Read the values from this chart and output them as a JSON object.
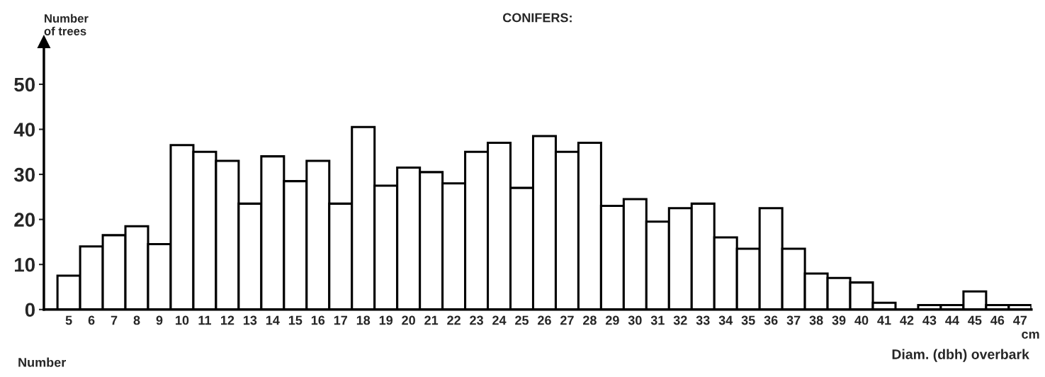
{
  "chart_data": {
    "type": "bar",
    "title": "CONIFERS:",
    "ylabel": "Number\nof trees",
    "xlabel": "Diam. (dbh) overbark",
    "annotations": [
      "cm",
      "Number"
    ],
    "categories": [
      "5",
      "6",
      "7",
      "8",
      "9",
      "10",
      "11",
      "12",
      "13",
      "14",
      "15",
      "16",
      "17",
      "18",
      "19",
      "20",
      "21",
      "22",
      "23",
      "24",
      "25",
      "26",
      "27",
      "28",
      "29",
      "30",
      "31",
      "32",
      "33",
      "34",
      "35",
      "36",
      "37",
      "38",
      "39",
      "40",
      "41",
      "42",
      "43",
      "44",
      "45",
      "46",
      "47"
    ],
    "values": [
      7.5,
      14,
      16.5,
      18.5,
      14.5,
      36.5,
      35,
      33,
      23.5,
      34,
      28.5,
      33,
      23.5,
      40.5,
      27.5,
      31.5,
      30.5,
      28,
      35,
      37,
      27,
      38.5,
      35,
      37,
      23,
      24.5,
      19.5,
      22.5,
      23.5,
      16,
      13.5,
      22.5,
      13.5,
      8,
      7,
      6,
      1.5,
      0,
      1,
      1,
      4,
      1,
      1
    ],
    "color": "#ffffff",
    "ylim": [
      0,
      59
    ],
    "yticks": [
      0,
      10,
      20,
      30,
      40,
      50
    ],
    "grid": false
  }
}
